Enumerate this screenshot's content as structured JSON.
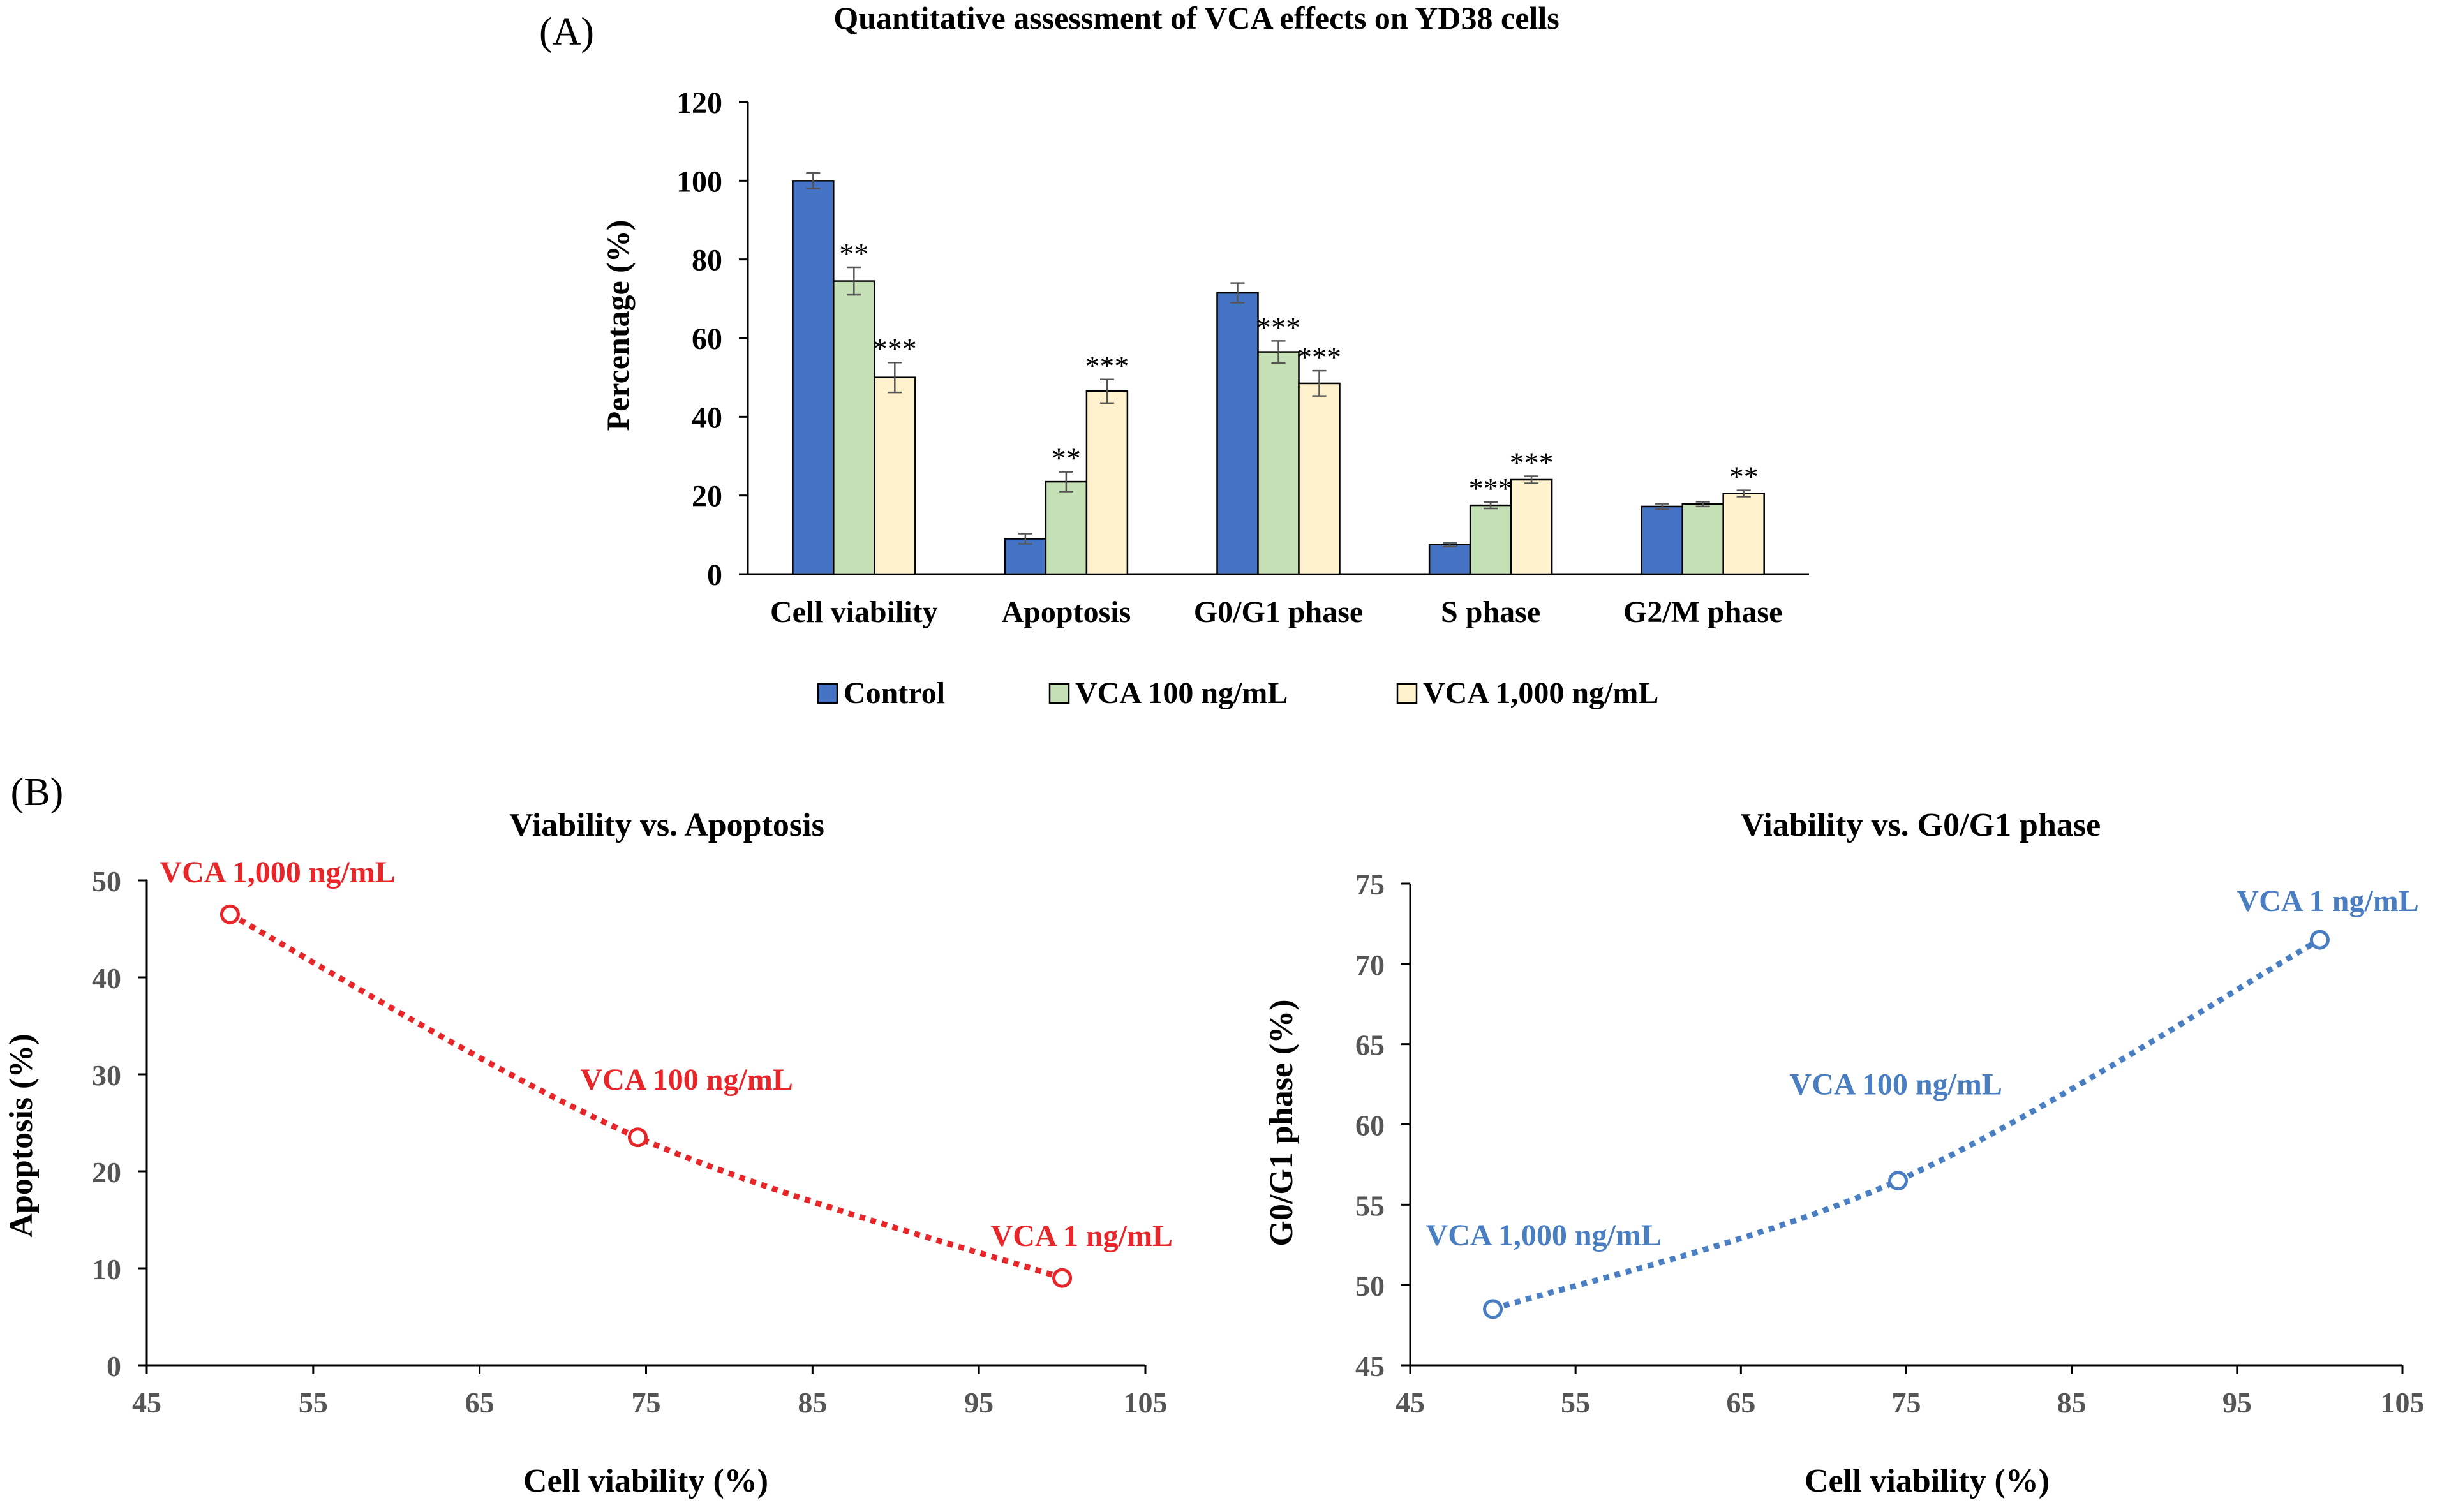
{
  "chart_data": [
    {
      "panel": "(A)",
      "type": "bar",
      "title": "Quantitative assessment of VCA effects on YD38 cells",
      "xlabel": "",
      "ylabel": "Percentage (%)",
      "ylim": [
        0,
        120
      ],
      "yticks": [
        0,
        20,
        40,
        60,
        80,
        100,
        120
      ],
      "grid": false,
      "legend": "bottom",
      "categories": [
        "Cell viability",
        "Apoptosis",
        "G0/G1 phase",
        "S phase",
        "G2/M phase"
      ],
      "series": [
        {
          "name": "Control",
          "color": "#4472C4",
          "values": [
            100,
            9,
            71.5,
            7.5,
            17.2
          ],
          "errors": [
            2,
            1.3,
            2.5,
            0.5,
            0.7
          ],
          "significance": [
            "",
            "",
            "",
            "",
            ""
          ]
        },
        {
          "name": "VCA 100 ng/mL",
          "color": "#C5E0B4",
          "values": [
            74.5,
            23.5,
            56.5,
            17.5,
            17.8
          ],
          "errors": [
            3.5,
            2.5,
            2.8,
            0.8,
            0.6
          ],
          "significance": [
            "**",
            "**",
            "***",
            "***",
            ""
          ]
        },
        {
          "name": "VCA 1,000 ng/mL",
          "color": "#FFF2CC",
          "values": [
            50,
            46.5,
            48.5,
            24,
            20.5
          ],
          "errors": [
            3.8,
            3,
            3.2,
            0.9,
            0.8
          ],
          "significance": [
            "***",
            "***",
            "***",
            "***",
            "**"
          ]
        }
      ]
    },
    {
      "panel": "(B)",
      "type": "scatter",
      "title": "Viability vs. Apoptosis",
      "xlabel": "Cell viability (%)",
      "ylabel": "Apoptosis (%)",
      "xlim": [
        45,
        105
      ],
      "ylim": [
        0,
        50
      ],
      "xticks": [
        45,
        55,
        65,
        75,
        85,
        95,
        105
      ],
      "yticks": [
        0,
        10,
        20,
        30,
        40,
        50
      ],
      "color": "#E8262A",
      "points": [
        {
          "x": 50,
          "y": 46.5,
          "label": "VCA 1,000 ng/mL"
        },
        {
          "x": 74.5,
          "y": 23.5,
          "label": "VCA 100 ng/mL"
        },
        {
          "x": 100,
          "y": 9,
          "label": "VCA 1 ng/mL"
        }
      ]
    },
    {
      "type": "scatter",
      "title": "Viability vs. G0/G1 phase",
      "xlabel": "Cell viability (%)",
      "ylabel": "G0/G1 phase (%)",
      "xlim": [
        45,
        105
      ],
      "ylim": [
        45,
        75
      ],
      "xticks": [
        45,
        55,
        65,
        75,
        85,
        95,
        105
      ],
      "yticks": [
        45,
        50,
        55,
        60,
        65,
        70,
        75
      ],
      "color": "#4A7EC2",
      "points": [
        {
          "x": 50,
          "y": 48.5,
          "label": "VCA 1,000 ng/mL"
        },
        {
          "x": 74.5,
          "y": 56.5,
          "label": "VCA 100 ng/mL"
        },
        {
          "x": 100,
          "y": 71.5,
          "label": "VCA 1 ng/mL"
        }
      ]
    }
  ]
}
